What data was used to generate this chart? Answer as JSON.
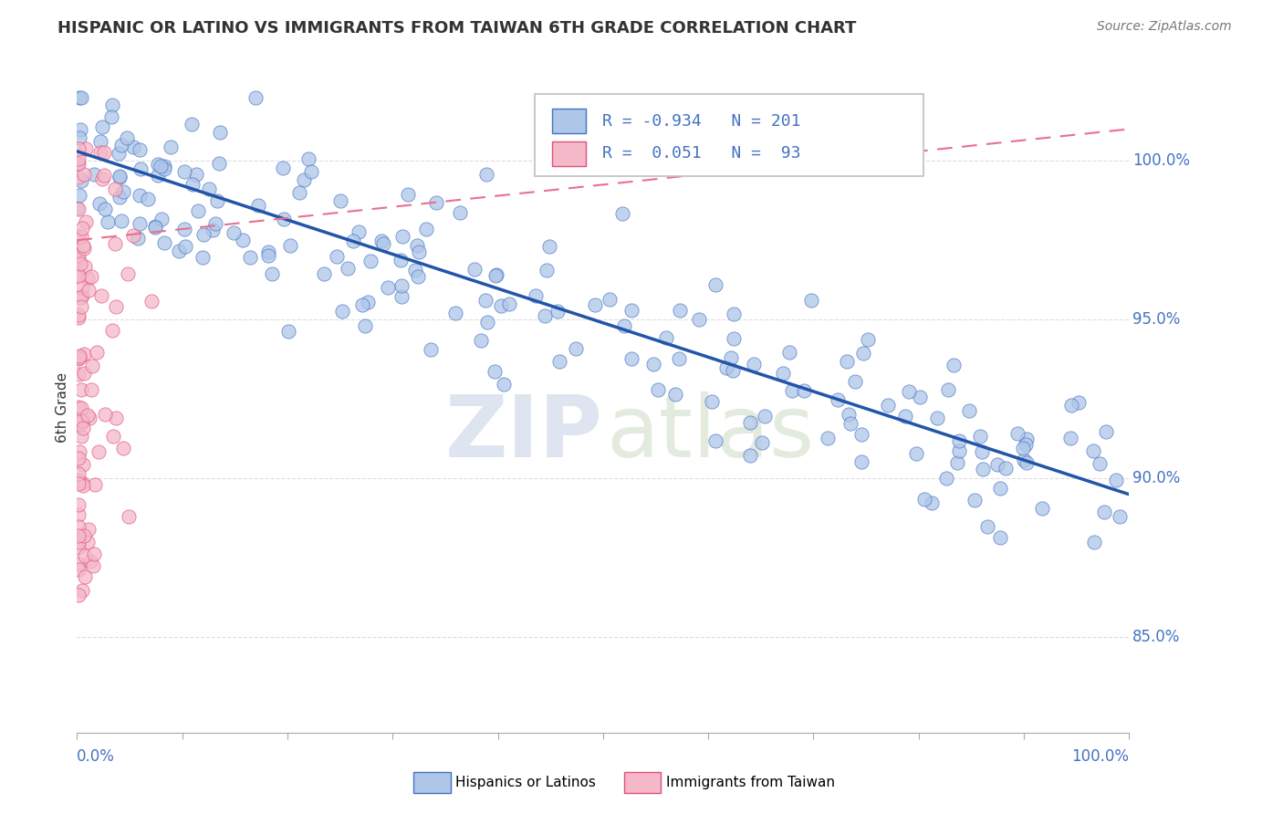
{
  "title": "HISPANIC OR LATINO VS IMMIGRANTS FROM TAIWAN 6TH GRADE CORRELATION CHART",
  "source_text": "Source: ZipAtlas.com",
  "ylabel": "6th Grade",
  "legend_blue_label": "Hispanics or Latinos",
  "legend_pink_label": "Immigrants from Taiwan",
  "R_blue": -0.934,
  "N_blue": 201,
  "R_pink": 0.051,
  "N_pink": 93,
  "blue_scatter_color": "#aec6e8",
  "blue_edge_color": "#4472c4",
  "pink_scatter_color": "#f4b8c8",
  "pink_edge_color": "#e05080",
  "blue_line_color": "#2255aa",
  "pink_line_color": "#e87090",
  "grid_color": "#dddddd",
  "text_color": "#333333",
  "axis_label_color": "#4472c4",
  "watermark_zip_color": "#c8d4e8",
  "watermark_atlas_color": "#c8d8c0",
  "xlim": [
    0.0,
    1.0
  ],
  "ylim": [
    0.82,
    1.025
  ],
  "ytick_vals": [
    0.85,
    0.9,
    0.95,
    1.0
  ],
  "ytick_labels": [
    "85.0%",
    "90.0%",
    "95.0%",
    "100.0%"
  ],
  "blue_line_x": [
    0.0,
    1.0
  ],
  "blue_line_y": [
    1.003,
    0.895
  ],
  "pink_line_x": [
    0.0,
    1.0
  ],
  "pink_line_y": [
    0.975,
    1.01
  ]
}
